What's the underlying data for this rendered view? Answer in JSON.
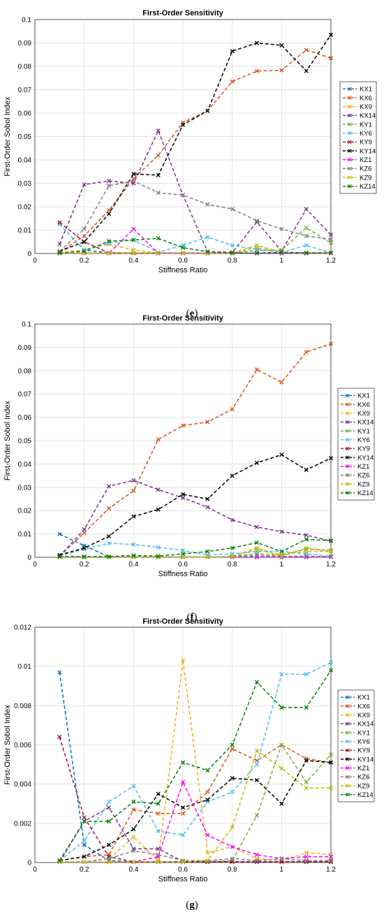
{
  "series_colors": {
    "KX1": "#0072BD",
    "KX6": "#D95319",
    "KX9": "#EDB120",
    "KX14": "#7E2F8E",
    "KY1": "#77AC30",
    "KY6": "#4DBEEE",
    "KY9": "#A2142F",
    "KY14": "#000000",
    "KZ1": "#FF00FF",
    "KZ6": "#808080",
    "KZ9": "#BFBF00",
    "KZ14": "#007F00"
  },
  "chart_data": [
    {
      "type": "line",
      "panel_label": "e",
      "title": "First-Order Sensitivity",
      "xlabel": "Stiffness Ratio",
      "ylabel": "First-Order Sobol Index",
      "xlim": [
        0,
        1.2
      ],
      "ylim": [
        0,
        0.1
      ],
      "xticks": [
        "0",
        "0.2",
        "0.4",
        "0.6",
        "0.8",
        "1",
        "1.2"
      ],
      "yticks": [
        "0",
        "0.01",
        "0.02",
        "0.03",
        "0.04",
        "0.05",
        "0.06",
        "0.07",
        "0.08",
        "0.09",
        "0.1"
      ],
      "grid": true,
      "legend_position": "right",
      "x": [
        0.1,
        0.2,
        0.3,
        0.4,
        0.5,
        0.6,
        0.7,
        0.8,
        0.9,
        1.0,
        1.1,
        1.2
      ],
      "series": [
        {
          "name": "KX1",
          "values": [
            0.0125,
            0.0015,
            0.0003,
            0.0001,
            0.0001,
            0.0001,
            0.0001,
            0.0001,
            0.0001,
            0.0001,
            0.0001,
            0.0001
          ]
        },
        {
          "name": "KX6",
          "values": [
            0.0005,
            0.0075,
            0.0185,
            0.032,
            0.042,
            0.056,
            0.061,
            0.0735,
            0.078,
            0.0783,
            0.087,
            0.0835
          ]
        },
        {
          "name": "KX9",
          "values": [
            0.0005,
            0.0015,
            0.004,
            0.0015,
            0.0002,
            0.0002,
            0.0002,
            0.0002,
            0.0025,
            0.0005,
            0.0003,
            0.0003
          ]
        },
        {
          "name": "KX14",
          "values": [
            0.004,
            0.0295,
            0.031,
            0.03,
            0.0525,
            0.025,
            0.0008,
            0.0005,
            0.0135,
            0.001,
            0.019,
            0.008
          ]
        },
        {
          "name": "KY1",
          "values": [
            0.0003,
            0.0003,
            0.0003,
            0.0003,
            0.0003,
            0.0003,
            0.0003,
            0.0003,
            0.0013,
            0.0015,
            0.011,
            0.0045
          ]
        },
        {
          "name": "KY6",
          "values": [
            0.0125,
            0.0015,
            0.0045,
            0.0058,
            0.0005,
            0.0035,
            0.007,
            0.0035,
            0.0018,
            0.0005,
            0.0035,
            0.0003
          ]
        },
        {
          "name": "KY9",
          "values": [
            0.0133,
            0.005,
            0.0003,
            0.0001,
            0.0001,
            0.0001,
            0.0001,
            0.0001,
            0.0001,
            0.0001,
            0.0001,
            0.0001
          ]
        },
        {
          "name": "KY14",
          "values": [
            0.001,
            0.005,
            0.017,
            0.034,
            0.0335,
            0.055,
            0.061,
            0.0865,
            0.09,
            0.089,
            0.078,
            0.0935
          ]
        },
        {
          "name": "KZ1",
          "values": [
            0.0001,
            0.0001,
            0.0001,
            0.0105,
            0.0001,
            0.0001,
            0.0001,
            0.0001,
            0.0001,
            0.0001,
            0.0001,
            0.0001
          ]
        },
        {
          "name": "KZ6",
          "values": [
            0.001,
            0.0105,
            0.029,
            0.031,
            0.026,
            0.025,
            0.021,
            0.019,
            0.014,
            0.0105,
            0.0075,
            0.006
          ]
        },
        {
          "name": "KZ9",
          "values": [
            0.0002,
            0.0002,
            0.0002,
            0.0002,
            0.0002,
            0.0002,
            0.0002,
            0.0002,
            0.0035,
            0.0005,
            0.0003,
            0.0003
          ]
        },
        {
          "name": "KZ14",
          "values": [
            0.0002,
            0.001,
            0.0053,
            0.0058,
            0.0065,
            0.0025,
            0.0008,
            0.0003,
            0.0002,
            0.0005,
            0.0003,
            0.0003
          ]
        }
      ]
    },
    {
      "type": "line",
      "panel_label": "f",
      "title": "First-Order Sensitivity",
      "xlabel": "Stiffness Ratio",
      "ylabel": "First-Order Sobol Index",
      "xlim": [
        0,
        1.2
      ],
      "ylim": [
        0,
        0.1
      ],
      "xticks": [
        "0",
        "0.2",
        "0.4",
        "0.6",
        "0.8",
        "1",
        "1.2"
      ],
      "yticks": [
        "0",
        "0.01",
        "0.02",
        "0.03",
        "0.04",
        "0.05",
        "0.06",
        "0.07",
        "0.08",
        "0.09",
        "0.1"
      ],
      "grid": true,
      "legend_position": "right",
      "x": [
        0.1,
        0.2,
        0.3,
        0.4,
        0.5,
        0.6,
        0.7,
        0.8,
        0.9,
        1.0,
        1.1,
        1.2
      ],
      "series": [
        {
          "name": "KX1",
          "values": [
            0.01,
            0.005,
            0.0003,
            0.0001,
            0.0001,
            0.0001,
            0.0001,
            0.0001,
            0.0001,
            0.0001,
            0.0001,
            0.0001
          ]
        },
        {
          "name": "KX6",
          "values": [
            0.0005,
            0.0105,
            0.021,
            0.0285,
            0.0505,
            0.0565,
            0.058,
            0.0635,
            0.0805,
            0.075,
            0.088,
            0.0915
          ]
        },
        {
          "name": "KX9",
          "values": [
            0.0001,
            0.0001,
            0.0001,
            0.0001,
            0.0001,
            0.0001,
            0.0001,
            0.0005,
            0.004,
            0.001,
            0.0025,
            0.0025
          ]
        },
        {
          "name": "KX14",
          "values": [
            0.0005,
            0.012,
            0.0305,
            0.033,
            0.029,
            0.0255,
            0.0215,
            0.016,
            0.013,
            0.011,
            0.0095,
            0.007
          ]
        },
        {
          "name": "KY1",
          "values": [
            0.0001,
            0.0001,
            0.0001,
            0.0001,
            0.0001,
            0.0001,
            0.0001,
            0.0005,
            0.0015,
            0.001,
            0.0035,
            0.003
          ]
        },
        {
          "name": "KY6",
          "values": [
            0.0005,
            0.0035,
            0.006,
            0.0055,
            0.0043,
            0.003,
            0.001,
            0.0015,
            0.0025,
            0.0025,
            0.0015,
            0.0005
          ]
        },
        {
          "name": "KY9",
          "values": [
            0.0003,
            0.0001,
            0.0001,
            0.0001,
            0.0001,
            0.0001,
            0.0001,
            0.0001,
            0.0001,
            0.0001,
            0.0001,
            0.0001
          ]
        },
        {
          "name": "KY14",
          "values": [
            0.001,
            0.004,
            0.009,
            0.0175,
            0.0205,
            0.027,
            0.025,
            0.035,
            0.0405,
            0.044,
            0.0375,
            0.0425
          ]
        },
        {
          "name": "KZ1",
          "values": [
            0.0001,
            0.0001,
            0.0001,
            0.0001,
            0.0001,
            0.0001,
            0.0001,
            0.0001,
            0.0001,
            0.0001,
            0.0001,
            0.0001
          ]
        },
        {
          "name": "KZ6",
          "values": [
            0.0001,
            0.0001,
            0.0001,
            0.0001,
            0.0001,
            0.0001,
            0.0001,
            0.0003,
            0.0008,
            0.0005,
            0.0005,
            0.0003
          ]
        },
        {
          "name": "KZ9",
          "values": [
            0.0001,
            0.0001,
            0.0001,
            0.0001,
            0.0001,
            0.0001,
            0.0001,
            0.0003,
            0.0035,
            0.0005,
            0.004,
            0.0025
          ]
        },
        {
          "name": "KZ14",
          "values": [
            0.0003,
            0.0003,
            0.0003,
            0.0008,
            0.0005,
            0.0015,
            0.0025,
            0.004,
            0.0063,
            0.0025,
            0.0077,
            0.0072
          ]
        }
      ]
    },
    {
      "type": "line",
      "panel_label": "g",
      "title": "First-Order Sensitivity",
      "xlabel": "Stiffness Ratio",
      "ylabel": "First-Order Sobol Index",
      "xlim": [
        0,
        1.2
      ],
      "ylim": [
        0,
        0.012
      ],
      "xticks": [
        "0",
        "0.2",
        "0.4",
        "0.6",
        "0.8",
        "1",
        "1.2"
      ],
      "yticks": [
        "0",
        "0.002",
        "0.004",
        "0.006",
        "0.008",
        "0.01",
        "0.012"
      ],
      "grid": true,
      "legend_position": "right",
      "x": [
        0.1,
        0.2,
        0.3,
        0.4,
        0.5,
        0.6,
        0.7,
        0.8,
        0.9,
        1.0,
        1.1,
        1.2
      ],
      "series": [
        {
          "name": "KX1",
          "values": [
            0.0097,
            0.0009,
            0.0001,
            3e-05,
            3e-05,
            3e-05,
            3e-05,
            3e-05,
            3e-05,
            3e-05,
            3e-05,
            3e-05
          ]
        },
        {
          "name": "KX6",
          "values": [
            0.0001,
            0.0003,
            0.0004,
            0.0027,
            0.0025,
            0.0025,
            0.0036,
            0.0058,
            0.0052,
            0.006,
            0.0053,
            0.0051
          ]
        },
        {
          "name": "KX9",
          "values": [
            3e-05,
            3e-05,
            0.0002,
            0.0013,
            0.0001,
            0.0103,
            0.0005,
            0.0008,
            0.0002,
            0.0001,
            0.0005,
            0.0004
          ]
        },
        {
          "name": "KX14",
          "values": [
            3e-05,
            0.0021,
            0.0028,
            0.0007,
            0.0007,
            5e-05,
            5e-05,
            5e-05,
            5e-05,
            5e-05,
            5e-05,
            5e-05
          ]
        },
        {
          "name": "KY1",
          "values": [
            3e-05,
            3e-05,
            3e-05,
            3e-05,
            3e-05,
            3e-05,
            3e-05,
            0.0001,
            0.0024,
            0.006,
            0.0041,
            0.0055
          ]
        },
        {
          "name": "KY6",
          "values": [
            0.0001,
            0.0011,
            0.0031,
            0.0039,
            0.0016,
            0.0014,
            0.0031,
            0.0036,
            0.005,
            0.0096,
            0.0096,
            0.0102
          ]
        },
        {
          "name": "KY9",
          "values": [
            0.0064,
            0.0023,
            0.0003,
            3e-05,
            3e-05,
            3e-05,
            3e-05,
            3e-05,
            3e-05,
            3e-05,
            3e-05,
            3e-05
          ]
        },
        {
          "name": "KY14",
          "values": [
            0.0001,
            0.0003,
            0.0009,
            0.0017,
            0.0035,
            0.0028,
            0.0032,
            0.0043,
            0.0042,
            0.003,
            0.0052,
            0.0051
          ]
        },
        {
          "name": "KZ1",
          "values": [
            3e-05,
            3e-05,
            3e-05,
            3e-05,
            0.0003,
            0.0041,
            0.0014,
            0.0008,
            0.0004,
            0.0002,
            0.0003,
            0.0003
          ]
        },
        {
          "name": "KZ6",
          "values": [
            3e-05,
            3e-05,
            0.0002,
            0.0006,
            0.0004,
            0.0001,
            0.0001,
            0.0002,
            0.0001,
            0.0002,
            0.0001,
            0.0001
          ]
        },
        {
          "name": "KZ9",
          "values": [
            3e-05,
            3e-05,
            3e-05,
            3e-05,
            3e-05,
            3e-05,
            0.0001,
            0.0018,
            0.0057,
            0.0048,
            0.0038,
            0.0038
          ]
        },
        {
          "name": "KZ14",
          "values": [
            0.0001,
            0.0021,
            0.0021,
            0.0031,
            0.003,
            0.0051,
            0.0047,
            0.006,
            0.0092,
            0.0079,
            0.0079,
            0.0098
          ]
        }
      ]
    }
  ]
}
